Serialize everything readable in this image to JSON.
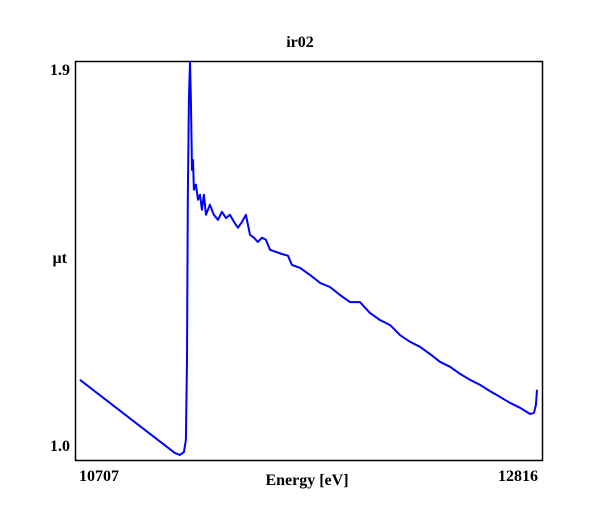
{
  "chart_data": {
    "type": "line",
    "title": "ir02",
    "xlabel": "Energy [eV]",
    "ylabel": "µt",
    "x_tick_labels": [
      "10707",
      "12816"
    ],
    "y_tick_labels": [
      "1.0",
      "1.9"
    ],
    "xlim": [
      10689,
      12839
    ],
    "ylim": [
      0.971,
      1.926
    ],
    "grid": false,
    "legend": "none",
    "series": [
      {
        "name": "ir02",
        "color": "#0000ff",
        "x": [
          10707,
          11145,
          11168,
          11187,
          11196,
          11201,
          11205,
          11210,
          11215,
          11219,
          11224,
          11229,
          11233,
          11242,
          11252,
          11261,
          11270,
          11279,
          11289,
          11307,
          11325,
          11344,
          11362,
          11381,
          11399,
          11418,
          11436,
          11455,
          11473,
          11492,
          11510,
          11528,
          11547,
          11565,
          11584,
          11612,
          11639,
          11667,
          11685,
          11722,
          11768,
          11815,
          11861,
          11907,
          11953,
          11999,
          12045,
          12091,
          12138,
          12184,
          12230,
          12276,
          12322,
          12368,
          12415,
          12461,
          12507,
          12553,
          12599,
          12645,
          12691,
          12738,
          12784,
          12802,
          12811,
          12816
        ],
        "y": [
          1.163,
          0.988,
          0.983,
          0.99,
          1.019,
          1.211,
          1.594,
          1.833,
          1.924,
          1.833,
          1.665,
          1.689,
          1.618,
          1.63,
          1.594,
          1.606,
          1.57,
          1.606,
          1.558,
          1.582,
          1.558,
          1.546,
          1.565,
          1.55,
          1.558,
          1.541,
          1.527,
          1.541,
          1.558,
          1.51,
          1.503,
          1.493,
          1.503,
          1.498,
          1.474,
          1.469,
          1.464,
          1.46,
          1.438,
          1.431,
          1.414,
          1.395,
          1.385,
          1.366,
          1.349,
          1.349,
          1.323,
          1.306,
          1.294,
          1.27,
          1.254,
          1.242,
          1.225,
          1.206,
          1.194,
          1.177,
          1.163,
          1.151,
          1.136,
          1.122,
          1.108,
          1.096,
          1.081,
          1.084,
          1.103,
          1.139
        ]
      }
    ]
  }
}
